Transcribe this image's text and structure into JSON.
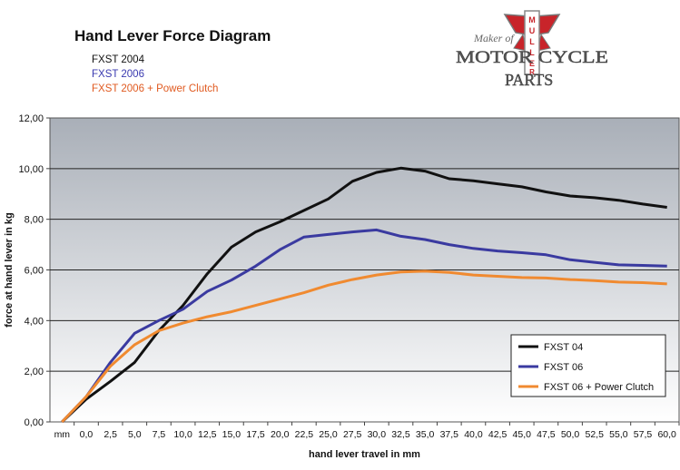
{
  "header": {
    "title": "Hand Lever Force Diagram",
    "subtitles": [
      "FXST 2004",
      "FXST 2006",
      "FXST 2006 + Power Clutch"
    ]
  },
  "logo": {
    "script_text": "Maker of",
    "brand": "MULLER",
    "line1": "MOTOR CYCLE",
    "line2": "PARTS"
  },
  "colors": {
    "fxst04": "#111111",
    "fxst06": "#3a3aa0",
    "power": "#f08a30",
    "plot_top": "#a9afb8",
    "plot_bottom": "#ffffff",
    "logo_red": "#c8242a"
  },
  "chart_data": {
    "type": "line",
    "xlabel": "hand lever travel in mm",
    "ylabel": "force at hand lever in kg",
    "x_categories": [
      "mm",
      "0,0",
      "2,5",
      "5,0",
      "7,5",
      "10,0",
      "12,5",
      "15,0",
      "17,5",
      "20,0",
      "22,5",
      "25,0",
      "27,5",
      "30,0",
      "32,5",
      "35,0",
      "37,5",
      "40,0",
      "42,5",
      "45,0",
      "47,5",
      "50,0",
      "52,5",
      "55,0",
      "57,5",
      "60,0"
    ],
    "y_ticks": [
      "0,00",
      "2,00",
      "4,00",
      "6,00",
      "8,00",
      "10,00",
      "12,00"
    ],
    "ylim": [
      0,
      12
    ],
    "grid": true,
    "legend_position": "bottom-right",
    "series": [
      {
        "name": "FXST 04",
        "x": [
          0,
          1,
          2,
          3,
          4,
          5,
          6,
          7,
          8,
          9,
          10,
          11,
          12,
          13,
          14,
          15,
          16,
          17,
          18,
          19,
          20,
          21,
          22,
          23,
          24,
          25
        ],
        "values": [
          0,
          0.9,
          1.6,
          2.35,
          3.6,
          4.6,
          5.85,
          6.9,
          7.5,
          7.9,
          8.35,
          8.8,
          9.5,
          9.85,
          10.02,
          9.9,
          9.6,
          9.52,
          9.4,
          9.28,
          9.08,
          8.92,
          8.85,
          8.75,
          8.6,
          8.47
        ]
      },
      {
        "name": "FXST 06",
        "x": [
          0,
          1,
          2,
          3,
          4,
          5,
          6,
          7,
          8,
          9,
          10,
          11,
          12,
          13,
          14,
          15,
          16,
          17,
          18,
          19,
          20,
          21,
          22,
          23,
          24,
          25
        ],
        "values": [
          0,
          1.0,
          2.35,
          3.5,
          4.0,
          4.45,
          5.15,
          5.6,
          6.15,
          6.8,
          7.3,
          7.4,
          7.5,
          7.58,
          7.33,
          7.2,
          7.0,
          6.85,
          6.75,
          6.68,
          6.6,
          6.4,
          6.3,
          6.2,
          6.18,
          6.15
        ]
      },
      {
        "name": "FXST 06 + Power Clutch",
        "x": [
          0,
          1,
          2,
          3,
          4,
          5,
          6,
          7,
          8,
          9,
          10,
          11,
          12,
          13,
          14,
          15,
          16,
          17,
          18,
          19,
          20,
          21,
          22,
          23,
          24,
          25
        ],
        "values": [
          0,
          1.0,
          2.2,
          3.05,
          3.6,
          3.9,
          4.15,
          4.35,
          4.6,
          4.85,
          5.1,
          5.4,
          5.62,
          5.8,
          5.92,
          5.95,
          5.9,
          5.8,
          5.75,
          5.7,
          5.68,
          5.62,
          5.58,
          5.52,
          5.5,
          5.45
        ]
      }
    ]
  }
}
